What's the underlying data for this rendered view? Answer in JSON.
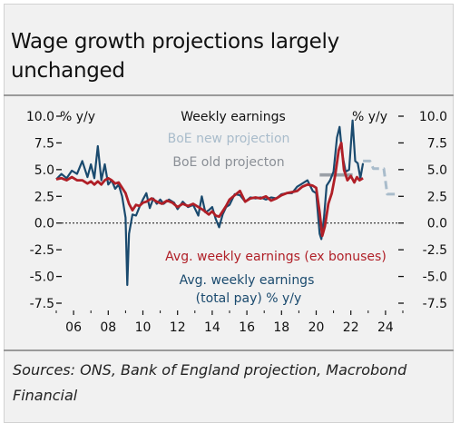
{
  "title": "Wage growth projections largely unchanged",
  "source": "Sources: ONS, Bank of England projection, Macrobond Financial",
  "chart_data": {
    "type": "line",
    "title": "Weekly earnings",
    "ylabel_left": "% y/y",
    "ylabel_right": "% y/y",
    "ylim": [
      -7.5,
      10.0
    ],
    "xlim": [
      2005,
      2025
    ],
    "yticks": [
      10.0,
      7.5,
      5.0,
      2.5,
      0.0,
      -2.5,
      -5.0,
      -7.5
    ],
    "ytick_labels": [
      "10.0",
      "7.5",
      "5.0",
      "2.5",
      "0.0",
      "-2.5",
      "-5.0",
      "-7.5"
    ],
    "xticks": [
      2006,
      2008,
      2010,
      2012,
      2014,
      2016,
      2018,
      2020,
      2022,
      2024
    ],
    "xtick_labels": [
      "06",
      "08",
      "10",
      "12",
      "14",
      "16",
      "18",
      "20",
      "22",
      "24"
    ],
    "grid": false,
    "zero_line": true,
    "colors": {
      "total_pay": "#1a4a6e",
      "ex_bonuses": "#b01f27",
      "new_projection": "#a9bccb",
      "old_projection": "#9a9fa6"
    },
    "series": [
      {
        "name": "Avg. weekly earnings (total pay) % y/y",
        "label_lines": [
          "Avg. weekly earnings",
          "(total pay) % y/y"
        ],
        "x": [
          2005.0,
          2005.3,
          2005.6,
          2005.9,
          2006.2,
          2006.5,
          2006.8,
          2007.0,
          2007.2,
          2007.4,
          2007.6,
          2007.8,
          2008.0,
          2008.2,
          2008.4,
          2008.6,
          2008.8,
          2009.0,
          2009.1,
          2009.2,
          2009.4,
          2009.6,
          2009.8,
          2010.0,
          2010.2,
          2010.4,
          2010.6,
          2010.8,
          2011.0,
          2011.2,
          2011.5,
          2011.8,
          2012.0,
          2012.3,
          2012.6,
          2012.9,
          2013.2,
          2013.4,
          2013.6,
          2013.8,
          2014.0,
          2014.2,
          2014.4,
          2014.6,
          2014.8,
          2015.0,
          2015.3,
          2015.6,
          2015.9,
          2016.2,
          2016.5,
          2016.8,
          2017.1,
          2017.4,
          2017.7,
          2018.0,
          2018.3,
          2018.6,
          2018.9,
          2019.2,
          2019.5,
          2019.8,
          2020.0,
          2020.2,
          2020.3,
          2020.45,
          2020.6,
          2020.8,
          2021.0,
          2021.2,
          2021.35,
          2021.5,
          2021.7,
          2021.9,
          2022.1,
          2022.25,
          2022.4,
          2022.55,
          2022.7
        ],
        "values": [
          4.1,
          4.6,
          4.2,
          4.9,
          4.6,
          5.8,
          4.3,
          5.5,
          4.2,
          7.2,
          4.0,
          5.5,
          3.6,
          4.0,
          3.2,
          3.6,
          2.5,
          0.5,
          -5.8,
          -1.0,
          0.8,
          0.7,
          1.5,
          2.2,
          2.8,
          1.4,
          2.3,
          1.8,
          2.2,
          1.8,
          2.2,
          1.9,
          1.3,
          2.0,
          1.5,
          1.7,
          0.7,
          2.5,
          1.0,
          1.2,
          1.5,
          0.4,
          -0.4,
          0.8,
          1.5,
          1.7,
          2.7,
          2.6,
          2.0,
          2.4,
          2.3,
          2.4,
          2.2,
          2.4,
          2.3,
          2.7,
          2.8,
          2.8,
          3.4,
          3.7,
          4.0,
          3.0,
          2.8,
          -1.0,
          -1.5,
          0.5,
          3.5,
          4.0,
          4.8,
          8.0,
          9.0,
          6.5,
          4.8,
          5.0,
          9.6,
          5.8,
          5.6,
          4.2,
          5.6
        ]
      },
      {
        "name": "Avg. weekly earnings (ex bonuses)",
        "x": [
          2005.0,
          2005.3,
          2005.6,
          2005.9,
          2006.2,
          2006.5,
          2006.8,
          2007.0,
          2007.2,
          2007.4,
          2007.6,
          2007.8,
          2008.0,
          2008.2,
          2008.4,
          2008.6,
          2008.8,
          2009.0,
          2009.2,
          2009.4,
          2009.6,
          2009.8,
          2010.0,
          2010.2,
          2010.5,
          2010.8,
          2011.1,
          2011.4,
          2011.7,
          2012.0,
          2012.3,
          2012.6,
          2012.9,
          2013.2,
          2013.5,
          2013.8,
          2014.0,
          2014.2,
          2014.4,
          2014.6,
          2014.8,
          2015.0,
          2015.3,
          2015.6,
          2015.9,
          2016.2,
          2016.5,
          2016.8,
          2017.1,
          2017.4,
          2017.7,
          2018.0,
          2018.3,
          2018.6,
          2018.9,
          2019.2,
          2019.5,
          2019.8,
          2020.0,
          2020.2,
          2020.35,
          2020.5,
          2020.7,
          2020.9,
          2021.1,
          2021.3,
          2021.45,
          2021.6,
          2021.8,
          2022.0,
          2022.2,
          2022.35,
          2022.5,
          2022.7
        ],
        "values": [
          4.1,
          4.2,
          4.0,
          4.3,
          4.0,
          4.0,
          3.7,
          3.9,
          3.6,
          3.9,
          3.6,
          4.0,
          4.2,
          4.0,
          3.7,
          3.8,
          3.3,
          2.8,
          1.8,
          1.2,
          1.7,
          1.6,
          1.9,
          2.0,
          2.3,
          2.0,
          1.8,
          2.1,
          1.9,
          1.5,
          1.8,
          1.6,
          1.8,
          1.5,
          1.2,
          0.8,
          1.1,
          0.7,
          0.6,
          1.1,
          1.6,
          2.2,
          2.6,
          3.0,
          2.0,
          2.3,
          2.4,
          2.3,
          2.5,
          2.1,
          2.3,
          2.6,
          2.8,
          2.9,
          3.0,
          3.4,
          3.6,
          3.5,
          3.3,
          1.0,
          -1.2,
          -0.3,
          1.8,
          2.8,
          4.5,
          6.8,
          7.5,
          5.0,
          4.0,
          4.4,
          3.8,
          4.3,
          4.0,
          4.2
        ]
      },
      {
        "name": "BoE new projection",
        "x": [
          2022.7,
          2023.1,
          2023.3,
          2023.9,
          2024.1,
          2024.7
        ],
        "values": [
          5.8,
          5.8,
          5.1,
          5.1,
          2.7,
          2.7
        ]
      },
      {
        "name": "BoE old projecton",
        "x": [
          2020.2,
          2022.1
        ],
        "values": [
          4.5,
          4.5
        ]
      }
    ]
  }
}
